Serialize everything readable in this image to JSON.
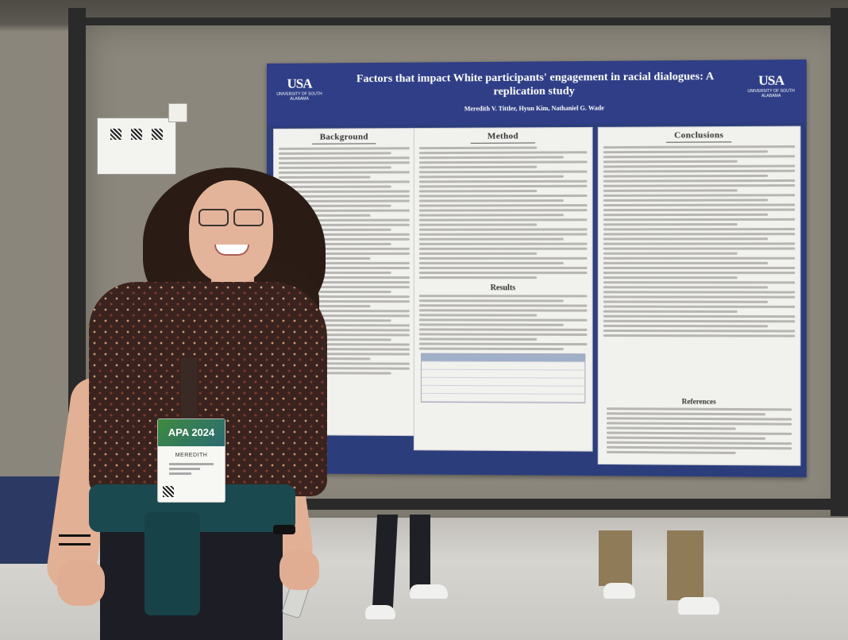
{
  "poster": {
    "title_line1": "Factors that impact White participants' engagement in racial dialogues: A",
    "title_line2": "replication study",
    "authors": "Meredith V. Tittler, Hyun Kim, Nathaniel G. Wade",
    "logo_mark": "USA",
    "logo_sub": "UNIVERSITY OF SOUTH ALABAMA",
    "sections": {
      "background": "Background",
      "method": "Method",
      "results": "Results",
      "conclusions": "Conclusions",
      "references": "References"
    }
  },
  "badge": {
    "event": "APA 2024",
    "name": "MEREDITH"
  }
}
